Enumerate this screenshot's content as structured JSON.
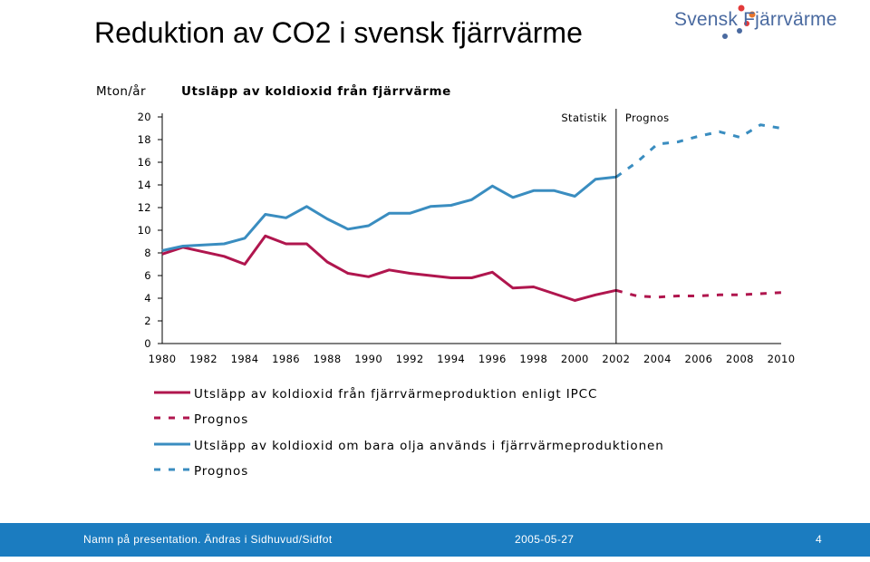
{
  "slide": {
    "title": "Reduktion av CO2 i svensk fjärrvärme",
    "logo_text": "Svensk Fjärrvärme"
  },
  "footer": {
    "left_text": "Namn på presentation. Ändras i Sidhuvud/Sidfot",
    "date": "2005-05-27",
    "page_number": "4"
  },
  "chart_data": {
    "type": "line",
    "title": "Utsläpp av koldioxid från fjärrvärme",
    "ylabel": "Mton/år",
    "xlabel": "",
    "xlim": [
      1980,
      2010
    ],
    "ylim": [
      0,
      20
    ],
    "x_ticks": [
      "1980",
      "1982",
      "1984",
      "1986",
      "1988",
      "1990",
      "1992",
      "1994",
      "1996",
      "1998",
      "2000",
      "2002",
      "2004",
      "2006",
      "2008",
      "2010"
    ],
    "y_ticks": [
      "0",
      "2",
      "4",
      "6",
      "8",
      "10",
      "12",
      "14",
      "16",
      "18",
      "20"
    ],
    "grid": false,
    "divider": {
      "x": 2002,
      "left_label": "Statistik",
      "right_label": "Prognos"
    },
    "legend_position": "bottom",
    "colors": {
      "red": "#b0164e",
      "blue": "#3a8dc0"
    },
    "series": [
      {
        "name": "Utsläpp av koldioxid från fjärrvärmeproduktion enligt IPCC",
        "color": "#b0164e",
        "style": "solid",
        "x": [
          1980,
          1981,
          1982,
          1983,
          1984,
          1985,
          1986,
          1987,
          1988,
          1989,
          1990,
          1991,
          1992,
          1993,
          1994,
          1995,
          1996,
          1997,
          1998,
          1999,
          2000,
          2001,
          2002
        ],
        "values": [
          7.9,
          8.5,
          8.1,
          7.7,
          7.0,
          9.5,
          8.8,
          8.8,
          7.2,
          6.2,
          5.9,
          6.5,
          6.2,
          6.0,
          5.8,
          5.8,
          6.3,
          4.9,
          5.0,
          4.4,
          3.8,
          4.3,
          4.7
        ]
      },
      {
        "name": "Prognos",
        "color": "#b0164e",
        "style": "dashed",
        "x": [
          2002,
          2003,
          2004,
          2005,
          2006,
          2007,
          2008,
          2009,
          2010
        ],
        "values": [
          4.7,
          4.2,
          4.1,
          4.2,
          4.2,
          4.3,
          4.3,
          4.4,
          4.5
        ]
      },
      {
        "name": "Utsläpp av koldioxid om bara olja används i fjärrvärmeproduktionen",
        "color": "#3a8dc0",
        "style": "solid",
        "x": [
          1980,
          1981,
          1982,
          1983,
          1984,
          1985,
          1986,
          1987,
          1988,
          1989,
          1990,
          1991,
          1992,
          1993,
          1994,
          1995,
          1996,
          1997,
          1998,
          1999,
          2000,
          2001,
          2002
        ],
        "values": [
          8.2,
          8.6,
          8.7,
          8.8,
          9.3,
          11.4,
          11.1,
          12.1,
          11.0,
          10.1,
          10.4,
          11.5,
          11.5,
          12.1,
          12.2,
          12.7,
          13.9,
          12.9,
          13.5,
          13.5,
          13.0,
          14.5,
          14.7
        ]
      },
      {
        "name": "Prognos",
        "color": "#3a8dc0",
        "style": "dashed",
        "x": [
          2002,
          2003,
          2004,
          2005,
          2006,
          2007,
          2008,
          2009,
          2010
        ],
        "values": [
          14.7,
          16.0,
          17.6,
          17.8,
          18.3,
          18.7,
          18.2,
          19.3,
          19.0
        ]
      }
    ]
  }
}
